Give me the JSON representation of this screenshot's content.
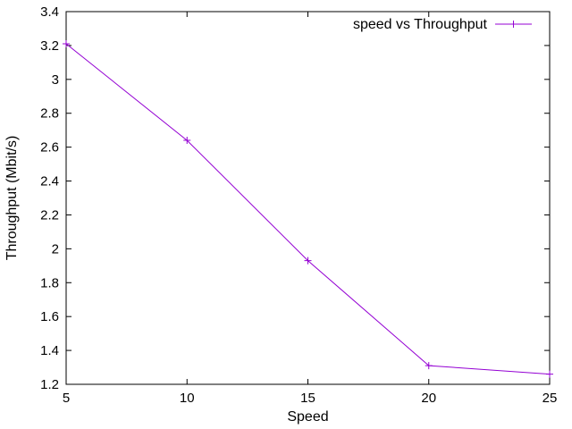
{
  "chart_data": {
    "type": "line",
    "title": "",
    "xlabel": "Speed",
    "ylabel": "Throughput (Mbit/s)",
    "xlim": [
      5,
      25
    ],
    "ylim": [
      1.2,
      3.4
    ],
    "xticks": [
      "5",
      "10",
      "15",
      "20",
      "25"
    ],
    "yticks": [
      "1.2",
      "1.4",
      "1.6",
      "1.8",
      "2",
      "2.2",
      "2.4",
      "2.6",
      "2.8",
      "3",
      "3.2",
      "3.4"
    ],
    "grid": false,
    "legend_position": "top-right",
    "line_color": "#9400d3",
    "series": [
      {
        "name": "speed vs Throughput",
        "x": [
          5,
          10,
          15,
          20,
          25
        ],
        "y": [
          3.21,
          2.64,
          1.93,
          1.31,
          1.26
        ]
      }
    ]
  }
}
